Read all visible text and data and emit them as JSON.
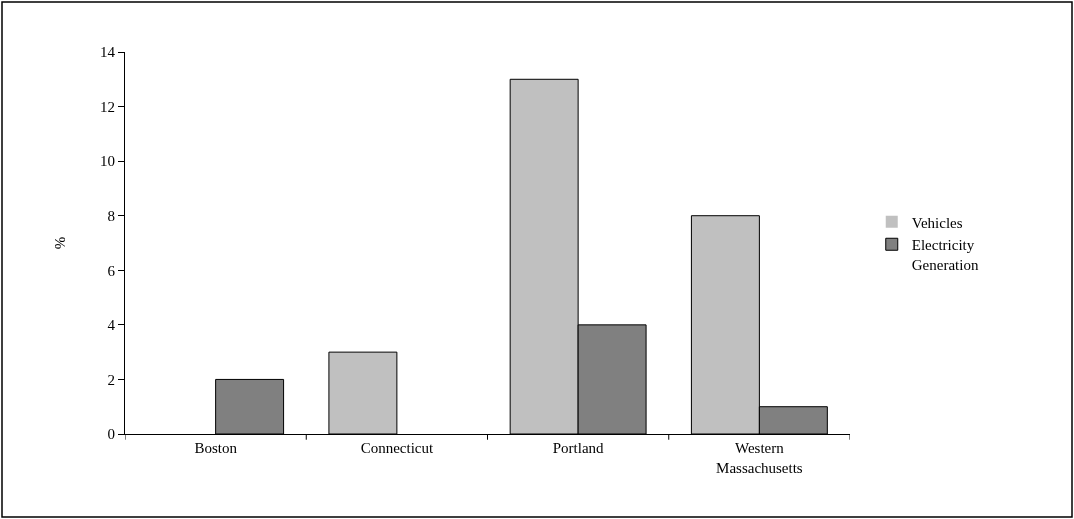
{
  "chart_data": {
    "type": "bar",
    "ylabel": "%",
    "categories": [
      "Boston",
      "Connecticut",
      "Portland",
      "Western Massachusetts"
    ],
    "series": [
      {
        "name": "Vehicles",
        "color": "#c0c0c0",
        "values": [
          0,
          3,
          13,
          8
        ]
      },
      {
        "name": "Electricity Generation",
        "color": "#808080",
        "values": [
          2,
          0,
          4,
          1
        ]
      }
    ],
    "ylim": [
      0,
      14
    ],
    "yticks": [
      0,
      2,
      4,
      6,
      8,
      10,
      12,
      14
    ],
    "legend": "right"
  }
}
